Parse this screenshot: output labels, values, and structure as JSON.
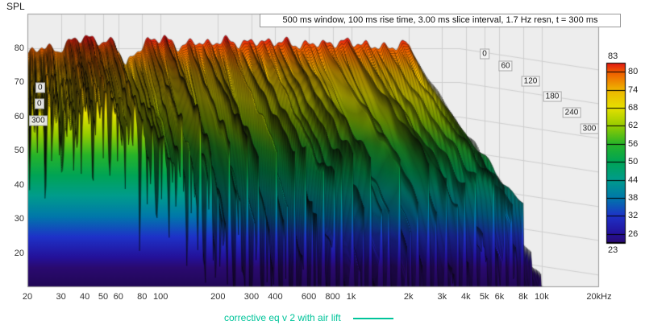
{
  "labels": {
    "spl": "SPL"
  },
  "legend": {
    "text": "corrective eq v 2 with air lift",
    "color": "#00c49a"
  },
  "chart_data": {
    "type": "waterfall",
    "title": "500 ms window, 100 ms rise time, 3.00 ms slice interval, 1.7 Hz resn, t = 300 ms",
    "xlabel": "Frequency (Hz)",
    "ylabel": "SPL (dB)",
    "x_scale": "log",
    "x_range_hz": [
      20,
      20000
    ],
    "y_range_db": [
      10,
      90
    ],
    "x_ticks": [
      {
        "f": 20,
        "label": "20"
      },
      {
        "f": 30,
        "label": "30"
      },
      {
        "f": 40,
        "label": "40"
      },
      {
        "f": 50,
        "label": "50"
      },
      {
        "f": 60,
        "label": "60"
      },
      {
        "f": 80,
        "label": "80"
      },
      {
        "f": 100,
        "label": "100"
      },
      {
        "f": 200,
        "label": "200"
      },
      {
        "f": 300,
        "label": "300"
      },
      {
        "f": 400,
        "label": "400"
      },
      {
        "f": 600,
        "label": "600"
      },
      {
        "f": 800,
        "label": "800"
      },
      {
        "f": 1000,
        "label": "1k"
      },
      {
        "f": 2000,
        "label": "2k"
      },
      {
        "f": 3000,
        "label": "3k"
      },
      {
        "f": 4000,
        "label": "4k"
      },
      {
        "f": 5000,
        "label": "5k"
      },
      {
        "f": 6000,
        "label": "6k"
      },
      {
        "f": 8000,
        "label": "8k"
      },
      {
        "f": 10000,
        "label": "10k"
      },
      {
        "f": 20000,
        "label": "20kHz"
      }
    ],
    "y_ticks": [
      "80",
      "70",
      "60",
      "50",
      "40",
      "30",
      "20"
    ],
    "time_axis": {
      "start_ms": 0,
      "end_ms": 300,
      "slice_interval_ms": 3,
      "right_labels": [
        "0",
        "60",
        "120",
        "180",
        "240",
        "300"
      ],
      "left_labels_visible": [
        "0",
        "0",
        "300"
      ]
    },
    "colorbar": {
      "max_label": "83",
      "min_label": "23",
      "side_labels": [
        "80",
        "74",
        "68",
        "62",
        "56",
        "50",
        "44",
        "38",
        "32",
        "26"
      ],
      "tick_values": [
        83,
        80,
        74,
        68,
        62,
        56,
        50,
        44,
        38,
        32,
        26,
        23
      ]
    },
    "colormap_db_hex": [
      [
        90,
        "#cc0000"
      ],
      [
        83,
        "#e01414"
      ],
      [
        80,
        "#f05a00"
      ],
      [
        74,
        "#eeb400"
      ],
      [
        68,
        "#e6e000"
      ],
      [
        62,
        "#96cc00"
      ],
      [
        56,
        "#28b428"
      ],
      [
        50,
        "#00a455"
      ],
      [
        44,
        "#009c8c"
      ],
      [
        38,
        "#0078aa"
      ],
      [
        32,
        "#1e32c8"
      ],
      [
        26,
        "#241199"
      ],
      [
        23,
        "#2a0a70"
      ],
      [
        14,
        "#1c0645"
      ],
      [
        10,
        "#170538"
      ]
    ],
    "envelope_t0_db": [
      [
        20,
        78
      ],
      [
        25,
        80.5
      ],
      [
        32,
        79
      ],
      [
        40,
        82.5
      ],
      [
        50,
        83
      ],
      [
        63,
        81.5
      ],
      [
        75,
        82
      ],
      [
        90,
        74.5
      ],
      [
        100,
        78
      ],
      [
        125,
        82
      ],
      [
        160,
        83
      ],
      [
        200,
        80
      ],
      [
        250,
        82
      ],
      [
        320,
        81
      ],
      [
        400,
        82.5
      ],
      [
        500,
        81
      ],
      [
        630,
        82
      ],
      [
        800,
        81.5
      ],
      [
        1000,
        82
      ],
      [
        1250,
        80.5
      ],
      [
        1600,
        81.5
      ],
      [
        2000,
        81
      ],
      [
        2500,
        82
      ],
      [
        3200,
        81
      ],
      [
        4000,
        80.5
      ],
      [
        5000,
        80
      ],
      [
        6300,
        81.5
      ],
      [
        7000,
        79
      ],
      [
        8000,
        72
      ],
      [
        9000,
        63
      ],
      [
        10000,
        52
      ],
      [
        12000,
        40
      ],
      [
        14000,
        32
      ],
      [
        17000,
        27
      ],
      [
        20000,
        24
      ]
    ],
    "decay_db_per_300ms": [
      [
        20,
        12
      ],
      [
        50,
        13
      ],
      [
        80,
        18
      ],
      [
        100,
        24
      ],
      [
        150,
        34
      ],
      [
        250,
        46
      ],
      [
        500,
        53
      ],
      [
        1000,
        55
      ],
      [
        3000,
        56
      ],
      [
        8000,
        50
      ],
      [
        20000,
        40
      ]
    ],
    "grid": {
      "background": "#ededed",
      "line": "#cfcfcf",
      "border": "#9a9a9a"
    }
  }
}
